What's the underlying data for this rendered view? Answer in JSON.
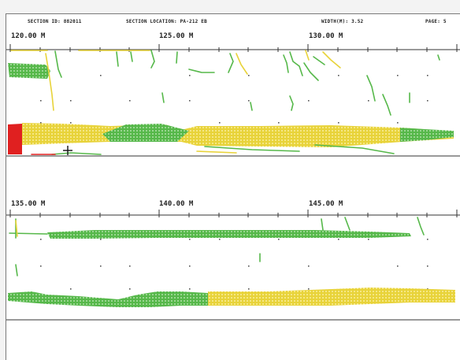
{
  "header": {
    "section_id": "SECTION ID: 882011",
    "section_location": "SECTION LOCATION: PA-212 EB",
    "width": "WIDTH(M): 3.52",
    "page": "PAGE: 5"
  },
  "strip1": {
    "labels": [
      "120.00 M",
      "125.00 M",
      "130.00 M"
    ]
  },
  "strip2": {
    "labels": [
      "135.00 M",
      "140.00 M",
      "145.00 M"
    ]
  },
  "legend_colors": {
    "low": "#56b84a",
    "moderate": "#e8d33a",
    "high": "#e02020"
  }
}
